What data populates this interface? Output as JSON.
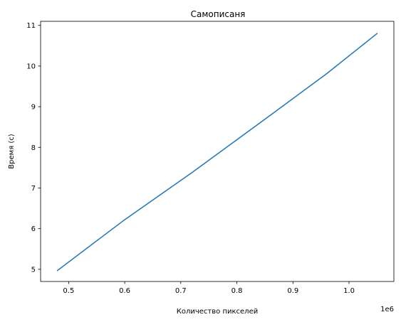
{
  "chart_data": {
    "type": "line",
    "title": "Самописаня",
    "xlabel": "Количество пикселей",
    "ylabel": "Время (с)",
    "x_offset_text": "1e6",
    "xlim": [
      0.45,
      1.08
    ],
    "ylim": [
      4.7,
      11.1
    ],
    "x_ticks": [
      0.5,
      0.6,
      0.7,
      0.8,
      0.9,
      1.0
    ],
    "x_tick_labels": [
      "0.5",
      "0.6",
      "0.7",
      "0.8",
      "0.9",
      "1.0"
    ],
    "y_ticks": [
      5,
      6,
      7,
      8,
      9,
      10,
      11
    ],
    "y_tick_labels": [
      "5",
      "6",
      "7",
      "8",
      "9",
      "10",
      "11"
    ],
    "grid": false,
    "series": [
      {
        "color": "#1f77b4",
        "x": [
          0.48,
          0.6,
          0.72,
          0.84,
          0.96,
          1.05
        ],
        "y": [
          4.97,
          6.22,
          7.38,
          8.59,
          9.81,
          10.8
        ]
      }
    ]
  }
}
